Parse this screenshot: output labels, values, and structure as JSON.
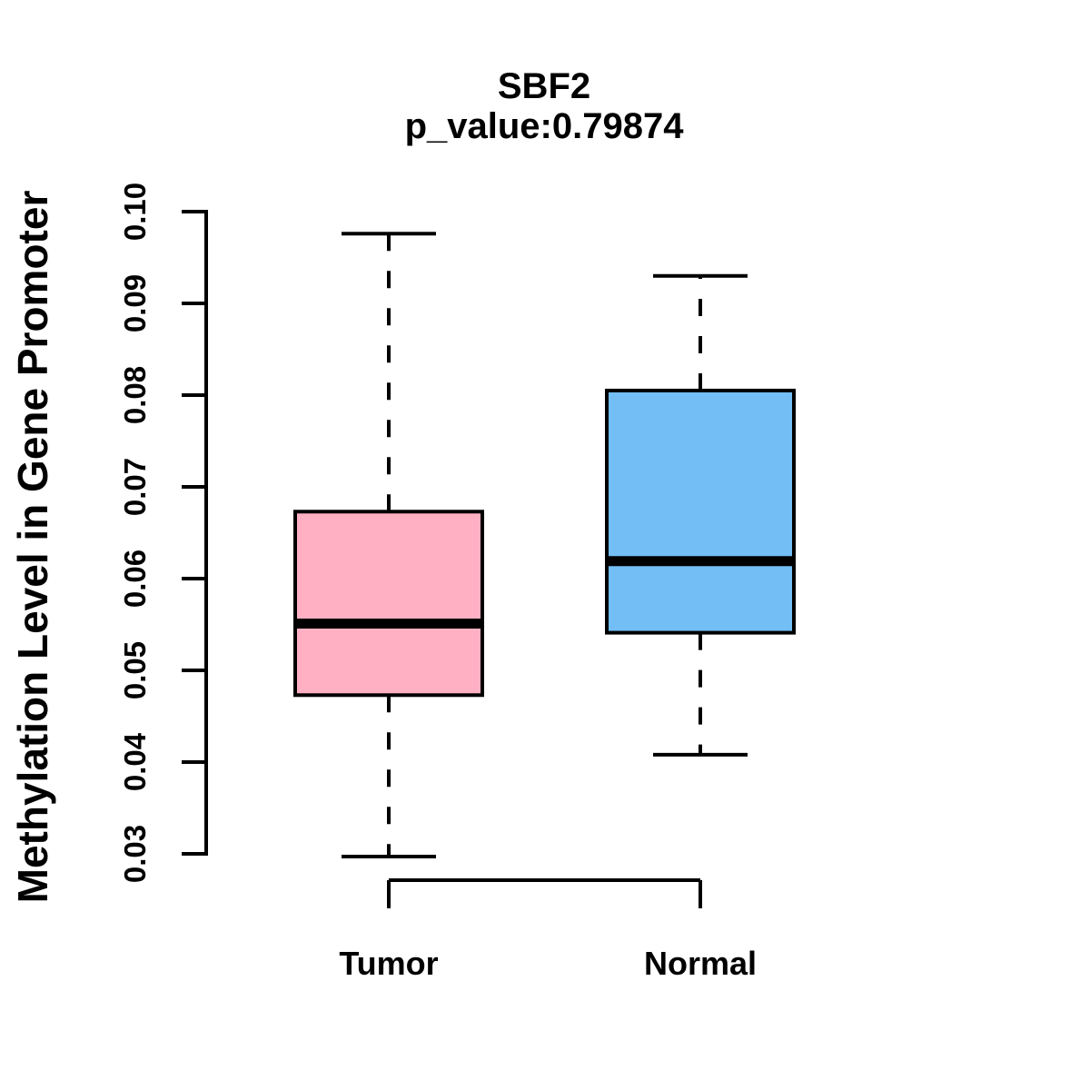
{
  "title": "SBF2",
  "subtitle": "p_value:0.79874",
  "ylabel": "Methylation Level in Gene Promoter",
  "chart_data": {
    "type": "boxplot",
    "categories": [
      "Tumor",
      "Normal"
    ],
    "series": [
      {
        "name": "Tumor",
        "whisker_low": 0.0297,
        "q1": 0.0473,
        "median": 0.0551,
        "q3": 0.0673,
        "whisker_high": 0.0976,
        "fill": "#FFB1C3"
      },
      {
        "name": "Normal",
        "whisker_low": 0.0408,
        "q1": 0.0541,
        "median": 0.0619,
        "q3": 0.0805,
        "whisker_high": 0.093,
        "fill": "#73BEF4"
      }
    ],
    "yticks": [
      0.03,
      0.04,
      0.05,
      0.06,
      0.07,
      0.08,
      0.09,
      0.1
    ],
    "ytick_labels": [
      "0.03",
      "0.04",
      "0.05",
      "0.06",
      "0.07",
      "0.08",
      "0.09",
      "0.10"
    ],
    "ylim": [
      0.03,
      0.1
    ],
    "xlabel": "",
    "grid": false,
    "colors": {
      "stroke": "#000000",
      "background": "#FFFFFF"
    }
  }
}
